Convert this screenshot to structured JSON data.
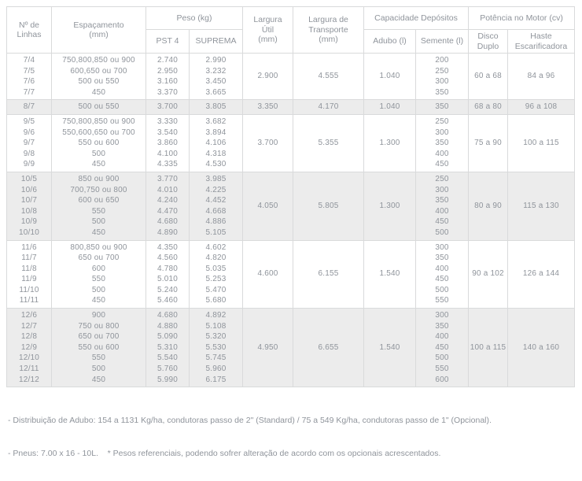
{
  "palette": {
    "text": "#8f949b",
    "border": "#d9dadb",
    "shaded_row": "#ececec",
    "background": "#ffffff"
  },
  "table": {
    "headers": {
      "linhas": "Nº de\nLinhas",
      "espacamento": "Espaçamento\n(mm)",
      "peso": "Peso (kg)",
      "pst4": "PST 4",
      "suprema": "SUPREMA",
      "largura_util": "Largura\nÚtil\n(mm)",
      "largura_transporte": "Largura de\nTransporte\n(mm)",
      "capacidade": "Capacidade Depósitos",
      "adubo": "Adubo (l)",
      "semente": "Semente (l)",
      "potencia": "Potência no Motor (cv)",
      "disco_duplo": "Disco\nDuplo",
      "haste": "Haste\nEscarificadora"
    },
    "groups": [
      {
        "shaded": false,
        "linhas": [
          "7/4",
          "7/5",
          "7/6",
          "7/7"
        ],
        "espacamento": [
          "750,800,850 ou 900",
          "600,650 ou 700",
          "500 ou 550",
          "450"
        ],
        "pst4": [
          "2.740",
          "2.950",
          "3.160",
          "3.370"
        ],
        "suprema": [
          "2.990",
          "3.232",
          "3.450",
          "3.665"
        ],
        "largura_util": "2.900",
        "largura_transporte": "4.555",
        "adubo": "1.040",
        "semente": [
          "200",
          "250",
          "300",
          "350"
        ],
        "disco_duplo": "60 a 68",
        "haste": "84 a 96"
      },
      {
        "shaded": true,
        "linhas": [
          "8/7"
        ],
        "espacamento": [
          "500 ou 550"
        ],
        "pst4": [
          "3.700"
        ],
        "suprema": [
          "3.805"
        ],
        "largura_util": "3.350",
        "largura_transporte": "4.170",
        "adubo": "1.040",
        "semente": [
          "350"
        ],
        "disco_duplo": "68 a 80",
        "haste": "96 a 108"
      },
      {
        "shaded": false,
        "linhas": [
          "9/5",
          "9/6",
          "9/7",
          "9/8",
          "9/9"
        ],
        "espacamento": [
          "750,800,850 ou 900",
          "550,600,650 ou 700",
          "550 ou 600",
          "500",
          "450"
        ],
        "pst4": [
          "3.330",
          "3.540",
          "3.860",
          "4.100",
          "4.335"
        ],
        "suprema": [
          "3.682",
          "3.894",
          "4.106",
          "4.318",
          "4.530"
        ],
        "largura_util": "3.700",
        "largura_transporte": "5.355",
        "adubo": "1.300",
        "semente": [
          "250",
          "300",
          "350",
          "400",
          "450"
        ],
        "disco_duplo": "75 a 90",
        "haste": "100 a 115"
      },
      {
        "shaded": true,
        "linhas": [
          "10/5",
          "10/6",
          "10/7",
          "10/8",
          "10/9",
          "10/10"
        ],
        "espacamento": [
          "850 ou 900",
          "700,750 ou 800",
          "600 ou 650",
          "550",
          "500",
          "450"
        ],
        "pst4": [
          "3.770",
          "4.010",
          "4.240",
          "4.470",
          "4.680",
          "4.890"
        ],
        "suprema": [
          "3.985",
          "4.225",
          "4.452",
          "4.668",
          "4.886",
          "5.105"
        ],
        "largura_util": "4.050",
        "largura_transporte": "5.805",
        "adubo": "1.300",
        "semente": [
          "250",
          "300",
          "350",
          "400",
          "450",
          "500"
        ],
        "disco_duplo": "80 a 90",
        "haste": "115 a 130"
      },
      {
        "shaded": false,
        "linhas": [
          "11/6",
          "11/7",
          "11/8",
          "11/9",
          "11/10",
          "11/11"
        ],
        "espacamento": [
          "800,850 ou 900",
          "650 ou 700",
          "600",
          "550",
          "500",
          "450"
        ],
        "pst4": [
          "4.350",
          "4.560",
          "4.780",
          "5.010",
          "5.240",
          "5.460"
        ],
        "suprema": [
          "4.602",
          "4.820",
          "5.035",
          "5.253",
          "5.470",
          "5.680"
        ],
        "largura_util": "4.600",
        "largura_transporte": "6.155",
        "adubo": "1.540",
        "semente": [
          "300",
          "350",
          "400",
          "450",
          "500",
          "550"
        ],
        "disco_duplo": "90 a 102",
        "haste": "126 a 144"
      },
      {
        "shaded": true,
        "linhas": [
          "12/6",
          "12/7",
          "12/8",
          "12/9",
          "12/10",
          "12/11",
          "12/12"
        ],
        "espacamento": [
          "900",
          "750 ou 800",
          "650 ou 700",
          "550 ou 600",
          "550",
          "500",
          "450"
        ],
        "pst4": [
          "4.680",
          "4.880",
          "5.090",
          "5.310",
          "5.540",
          "5.760",
          "5.990"
        ],
        "suprema": [
          "4.892",
          "5.108",
          "5.320",
          "5.530",
          "5.745",
          "5.960",
          "6.175"
        ],
        "largura_util": "4.950",
        "largura_transporte": "6.655",
        "adubo": "1.540",
        "semente": [
          "300",
          "350",
          "400",
          "450",
          "500",
          "550",
          "600"
        ],
        "disco_duplo": "100 a 115",
        "haste": "140 a 160"
      }
    ]
  },
  "notes": {
    "line1": "- Distribuição de Adubo: 154 a 1131 Kg/ha, condutoras passo de 2\" (Standard) / 75 a 549 Kg/ha, condutoras passo de 1\" (Opcional).",
    "line2": "- Pneus: 7.00 x 16 - 10L.    * Pesos referenciais, podendo sofrer alteração de acordo com os opcionais acrescentados."
  }
}
